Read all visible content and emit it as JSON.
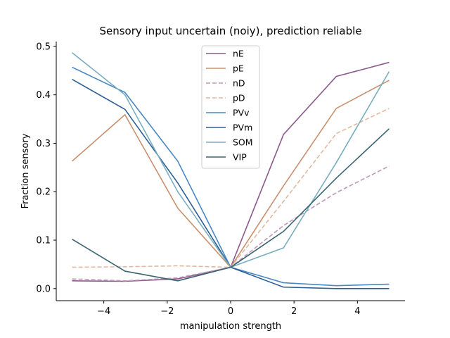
{
  "chart_data": {
    "type": "line",
    "title": "Sensory input uncertain (noiy), prediction reliable",
    "xlabel": "manipulation strength",
    "ylabel": "Fraction sensory",
    "xlim": [
      -5.5,
      5.5
    ],
    "ylim": [
      -0.025,
      0.51
    ],
    "xticks": [
      -4,
      -2,
      0,
      2,
      4
    ],
    "xtick_labels": [
      "−4",
      "−2",
      "0",
      "2",
      "4"
    ],
    "yticks": [
      0.0,
      0.1,
      0.2,
      0.3,
      0.4,
      0.5
    ],
    "ytick_labels": [
      "0.0",
      "0.1",
      "0.2",
      "0.3",
      "0.4",
      "0.5"
    ],
    "grid": false,
    "legend_position": "top-center",
    "x": [
      -5,
      -3.333,
      -1.667,
      0,
      1.667,
      3.333,
      5
    ],
    "series": [
      {
        "name": "nE",
        "color": "#8c5a8c",
        "dash": "solid",
        "values": [
          0.016,
          0.015,
          0.02,
          0.044,
          0.318,
          0.438,
          0.467
        ]
      },
      {
        "name": "pE",
        "color": "#c8906e",
        "dash": "solid",
        "values": [
          0.263,
          0.359,
          0.166,
          0.044,
          0.212,
          0.372,
          0.43
        ]
      },
      {
        "name": "nD",
        "color": "#c098ba",
        "dash": "dashed",
        "values": [
          0.02,
          0.016,
          0.022,
          0.044,
          0.13,
          0.198,
          0.253
        ]
      },
      {
        "name": "pD",
        "color": "#e2b8a0",
        "dash": "dashed",
        "values": [
          0.044,
          0.045,
          0.047,
          0.044,
          0.18,
          0.32,
          0.372
        ]
      },
      {
        "name": "PVv",
        "color": "#4a88c2",
        "dash": "solid",
        "values": [
          0.457,
          0.405,
          0.263,
          0.044,
          0.012,
          0.006,
          0.009
        ]
      },
      {
        "name": "PVm",
        "color": "#2d5f95",
        "dash": "solid",
        "values": [
          0.432,
          0.37,
          0.218,
          0.044,
          0.003,
          0.0,
          0.0
        ]
      },
      {
        "name": "SOM",
        "color": "#78aec0",
        "dash": "solid",
        "values": [
          0.487,
          0.4,
          0.2,
          0.044,
          0.084,
          0.26,
          0.448
        ]
      },
      {
        "name": "VIP",
        "color": "#3a6572",
        "dash": "solid",
        "values": [
          0.102,
          0.036,
          0.016,
          0.044,
          0.118,
          0.228,
          0.33
        ]
      }
    ]
  }
}
